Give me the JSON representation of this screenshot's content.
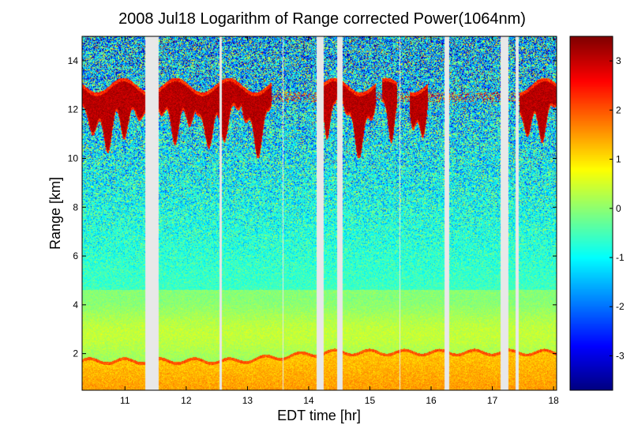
{
  "chart_data": {
    "type": "heatmap",
    "title": "2008 Jul18  Logarithm of Range corrected Power(1064nm)",
    "xlabel": "EDT time [hr]",
    "ylabel": "Range [km]",
    "xlim": [
      10.3,
      18.05
    ],
    "ylim": [
      0.5,
      15
    ],
    "xticks": [
      11,
      12,
      13,
      14,
      15,
      16,
      17,
      18
    ],
    "yticks": [
      2,
      4,
      6,
      8,
      10,
      12,
      14
    ],
    "colorbar": {
      "clim": [
        -3.7,
        3.5
      ],
      "ticks": [
        -3,
        -2,
        -1,
        0,
        1,
        2,
        3
      ],
      "colormap": "jet"
    },
    "data_gaps": [
      {
        "start": 11.33,
        "end": 11.55
      },
      {
        "start": 12.55,
        "end": 12.58
      },
      {
        "start": 13.57,
        "end": 13.59
      },
      {
        "start": 14.13,
        "end": 14.24
      },
      {
        "start": 14.46,
        "end": 14.56
      },
      {
        "start": 15.48,
        "end": 15.5
      },
      {
        "start": 16.22,
        "end": 16.29
      },
      {
        "start": 17.14,
        "end": 17.26
      },
      {
        "start": 17.38,
        "end": 17.43
      }
    ],
    "cloud_layer": {
      "description": "high backscatter cirrus",
      "base_km_min": 10.0,
      "top_km_max": 13.2
    },
    "boundary_layer_top_km": 2.0
  }
}
